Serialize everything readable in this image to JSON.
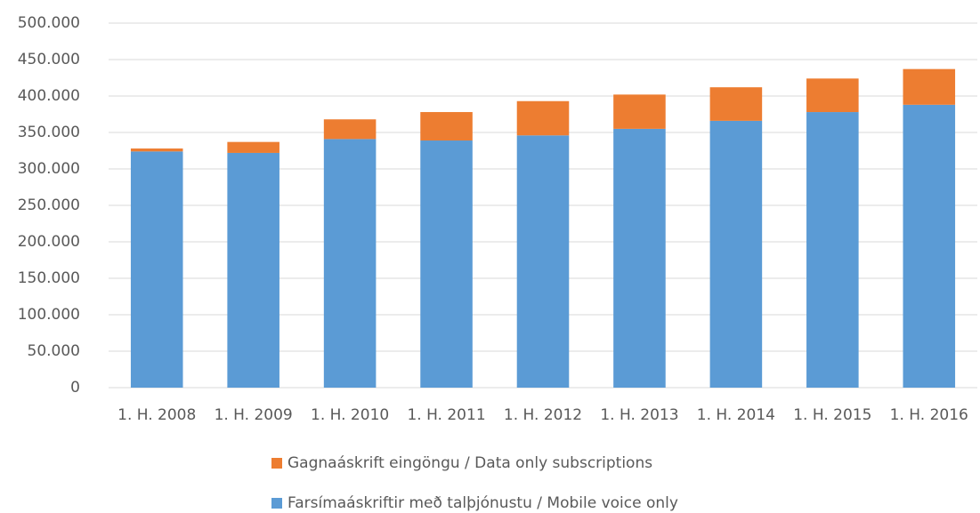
{
  "chart_data": {
    "type": "stacked_bar",
    "categories": [
      "1. H. 2008",
      "1. H. 2009",
      "1. H. 2010",
      "1. H. 2011",
      "1. H. 2012",
      "1. H. 2013",
      "1. H. 2014",
      "1. H. 2015",
      "1. H. 2016"
    ],
    "series": [
      {
        "name": "Farsímaáskriftir með talþjónustu / Mobile voice only",
        "color": "#5b9bd5",
        "values": [
          324000,
          322000,
          341000,
          339000,
          346000,
          355000,
          366000,
          378000,
          388000
        ]
      },
      {
        "name": "Gagnaáskrift eingöngu / Data only subscriptions",
        "color": "#ed7d31",
        "values": [
          4000,
          15000,
          27000,
          39000,
          47000,
          47000,
          46000,
          46000,
          49000
        ]
      }
    ],
    "ylim": [
      0,
      500000
    ],
    "yticks": [
      0,
      {
        "value": 50000,
        "label": "50.000"
      },
      {
        "value": 100000,
        "label": "100.000"
      },
      {
        "value": 150000,
        "label": "150.000"
      },
      {
        "value": 200000,
        "label": "200.000"
      },
      {
        "value": 250000,
        "label": "250.000"
      },
      {
        "value": 300000,
        "label": "300.000"
      },
      {
        "value": 350000,
        "label": "350.000"
      },
      {
        "value": 400000,
        "label": "400.000"
      },
      {
        "value": 450000,
        "label": "450.000"
      },
      {
        "value": 500000,
        "label": "500.000"
      }
    ],
    "grid": true,
    "legend": "bottom"
  }
}
